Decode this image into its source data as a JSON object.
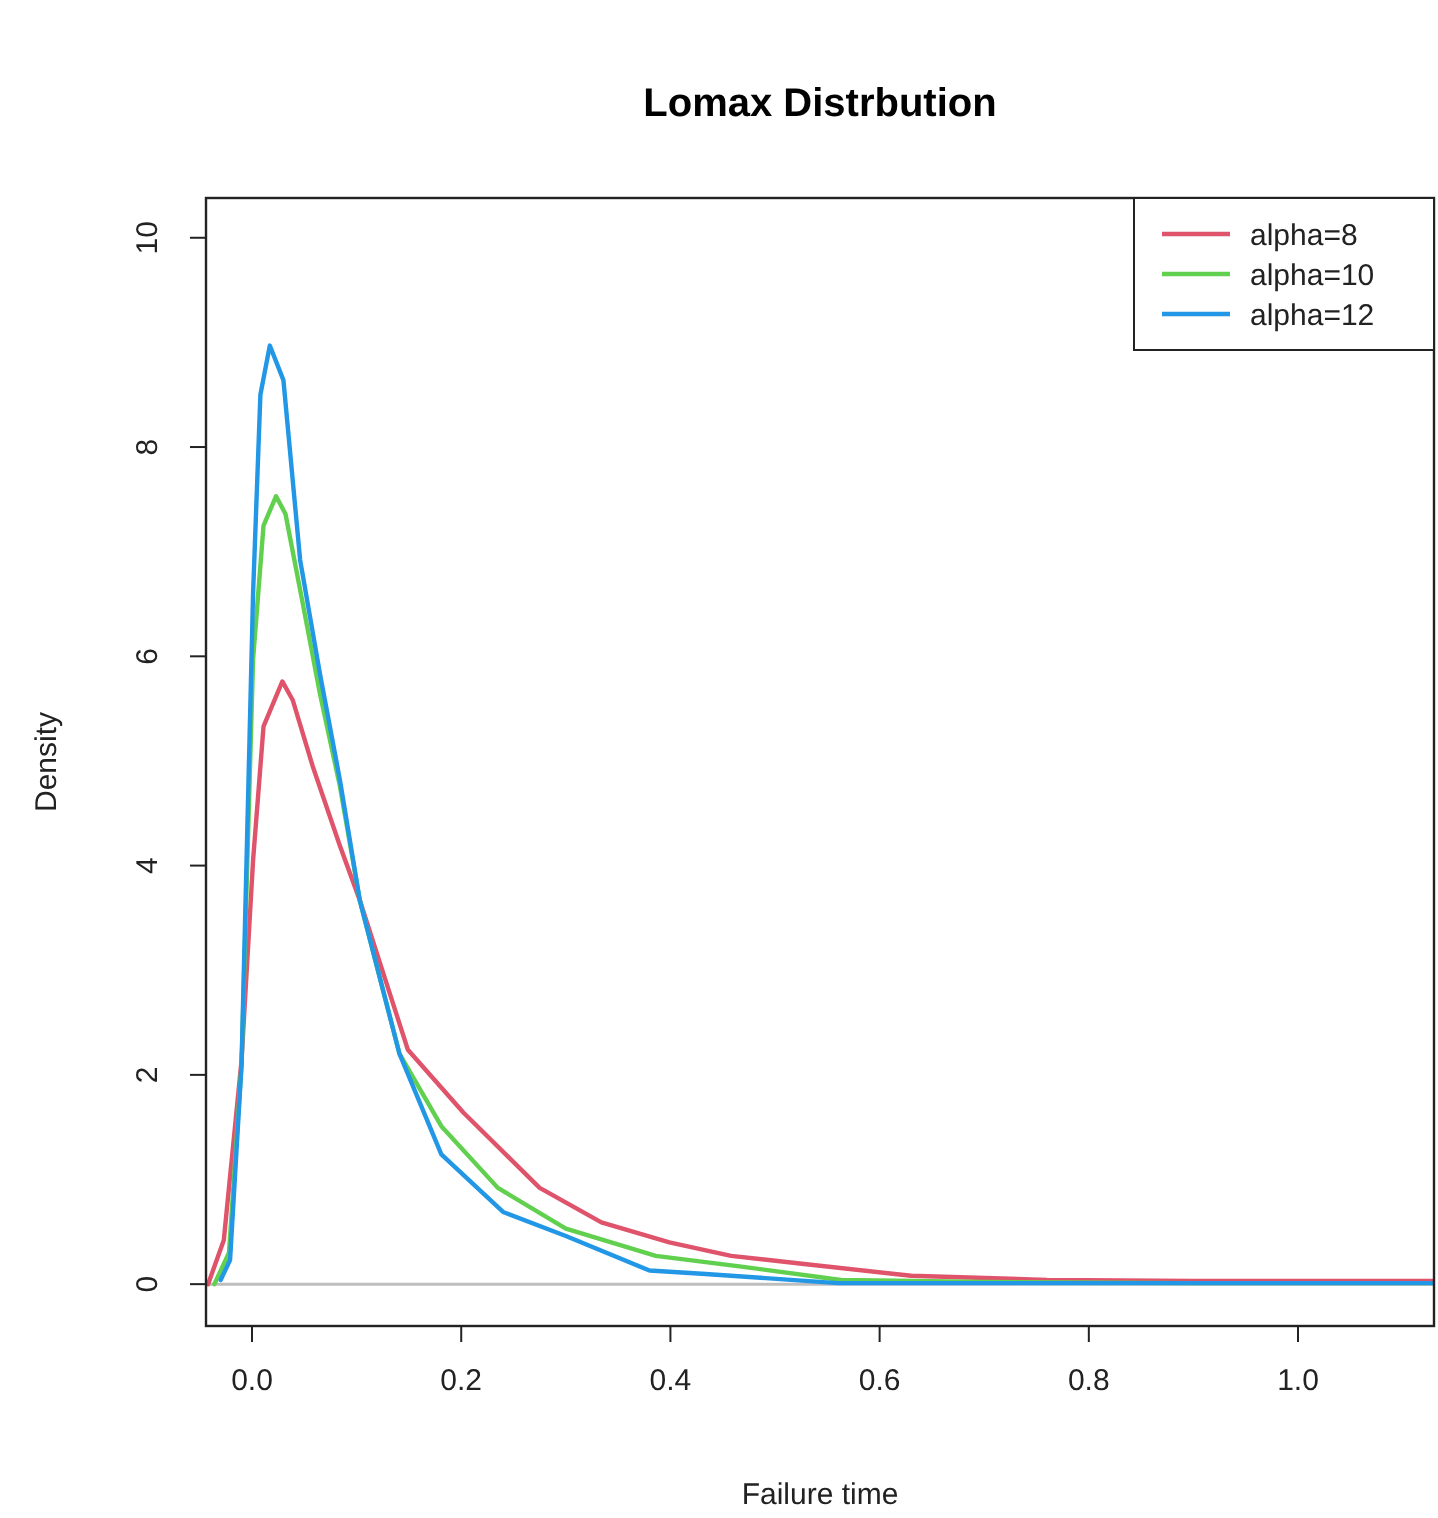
{
  "chart_data": {
    "type": "line",
    "title": "Lomax Distrbution",
    "xlabel": "Failure time",
    "ylabel": "Density",
    "xlim": [
      -0.044,
      1.13
    ],
    "xticks": [
      {
        "value": 0,
        "label": "0.0"
      },
      0.2,
      0.4,
      0.6,
      0.8,
      {
        "value": 1,
        "label": "1.0"
      }
    ],
    "ylim": [
      -0.4,
      10.38
    ],
    "yticks": [
      0,
      2,
      4,
      6,
      8,
      10
    ],
    "grid": false,
    "legend": "top right",
    "line_style": "solid",
    "marker": "none",
    "ref_lines": [
      {
        "axis": "y",
        "value": 0,
        "color": "#bebebe"
      }
    ],
    "series": [
      {
        "name": "alpha=8",
        "color": "#df536b",
        "x": [
          -0.042,
          -0.027,
          -0.01,
          0.001,
          0.011,
          0.029,
          0.039,
          0.058,
          0.084,
          0.103,
          0.149,
          0.202,
          0.275,
          0.334,
          0.399,
          0.458,
          0.53,
          0.63,
          0.76,
          0.9,
          1.13
        ],
        "values": [
          0,
          0.42,
          2.14,
          4.05,
          5.33,
          5.76,
          5.58,
          4.95,
          4.19,
          3.67,
          2.24,
          1.64,
          0.92,
          0.59,
          0.4,
          0.27,
          0.19,
          0.08,
          0.04,
          0.03,
          0.03
        ]
      },
      {
        "name": "alpha=10",
        "color": "#61d04f",
        "x": [
          -0.036,
          -0.022,
          -0.01,
          0.001,
          0.011,
          0.023,
          0.032,
          0.049,
          0.065,
          0.084,
          0.103,
          0.141,
          0.181,
          0.235,
          0.3,
          0.386,
          0.466,
          0.563,
          0.7,
          0.9,
          1.13
        ],
        "values": [
          0,
          0.3,
          2.1,
          5.97,
          7.25,
          7.53,
          7.36,
          6.48,
          5.64,
          4.76,
          3.67,
          2.2,
          1.51,
          0.92,
          0.53,
          0.27,
          0.17,
          0.04,
          0.02,
          0.01,
          0.01
        ]
      },
      {
        "name": "alpha=12",
        "color": "#2297e6",
        "x": [
          -0.03,
          -0.021,
          -0.01,
          0.001,
          0.008,
          0.017,
          0.03,
          0.046,
          0.065,
          0.084,
          0.103,
          0.141,
          0.181,
          0.24,
          0.3,
          0.38,
          0.43,
          0.56,
          0.7,
          0.9,
          1.13
        ],
        "values": [
          0.04,
          0.23,
          2.1,
          6.6,
          8.5,
          8.97,
          8.64,
          6.92,
          5.83,
          4.82,
          3.67,
          2.2,
          1.24,
          0.69,
          0.46,
          0.13,
          0.1,
          0.01,
          0.01,
          0.01,
          0.01
        ]
      }
    ]
  }
}
